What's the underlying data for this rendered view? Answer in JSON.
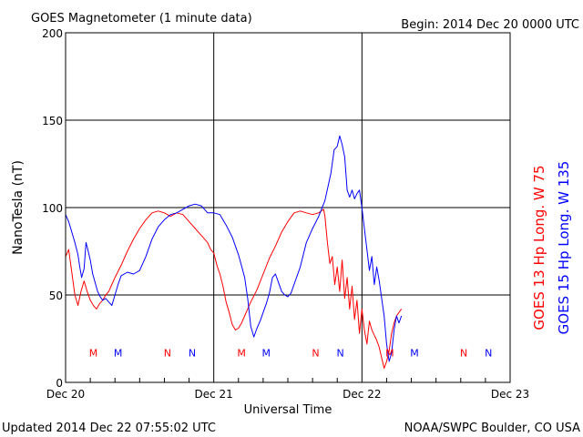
{
  "header": {
    "title": "GOES Magnetometer (1 minute data)",
    "begin": "Begin:  2014 Dec 20 0000 UTC"
  },
  "footer": {
    "updated": "Updated 2014 Dec 22 07:55:02 UTC",
    "credit": "NOAA/SWPC Boulder, CO USA"
  },
  "colors": {
    "goes13": "#ff0000",
    "goes15": "#0000ff",
    "grid": "#000000"
  },
  "chart_data": {
    "type": "line",
    "xlabel": "Universal Time",
    "ylabel": "NanoTesla (nT)",
    "x_unit": "hours since 2014 Dec 20 0000 UTC",
    "xlim": [
      0,
      72
    ],
    "ylim": [
      0,
      200
    ],
    "x_ticks": [
      {
        "x": 0,
        "label": "Dec 20"
      },
      {
        "x": 24,
        "label": "Dec 21"
      },
      {
        "x": 48,
        "label": "Dec 22"
      },
      {
        "x": 72,
        "label": "Dec 23"
      }
    ],
    "y_ticks": [
      0,
      50,
      100,
      150,
      200
    ],
    "grid": true,
    "legend": [
      {
        "name": "GOES 13 Hp  Long. W 75",
        "color": "#ff0000"
      },
      {
        "name": "GOES 15 Hp  Long. W 135",
        "color": "#0000ff"
      }
    ],
    "series": [
      {
        "name": "GOES 13 Hp",
        "color": "#ff0000",
        "points": [
          [
            0,
            72
          ],
          [
            0.5,
            76
          ],
          [
            1,
            63
          ],
          [
            1.5,
            50
          ],
          [
            2,
            44
          ],
          [
            2.5,
            52
          ],
          [
            3,
            58
          ],
          [
            3.5,
            52
          ],
          [
            4,
            47
          ],
          [
            4.5,
            44
          ],
          [
            5,
            42
          ],
          [
            5.5,
            45
          ],
          [
            6,
            47
          ],
          [
            6.5,
            50
          ],
          [
            7,
            52
          ],
          [
            7.5,
            56
          ],
          [
            8,
            60
          ],
          [
            9,
            67
          ],
          [
            10,
            75
          ],
          [
            11,
            82
          ],
          [
            12,
            88
          ],
          [
            13,
            93
          ],
          [
            14,
            97
          ],
          [
            15,
            98
          ],
          [
            16,
            97
          ],
          [
            17,
            95
          ],
          [
            18,
            97
          ],
          [
            19,
            96
          ],
          [
            20,
            92
          ],
          [
            21,
            88
          ],
          [
            22,
            84
          ],
          [
            23,
            80
          ],
          [
            23.5,
            76
          ],
          [
            24,
            74
          ],
          [
            24.5,
            67
          ],
          [
            25,
            62
          ],
          [
            25.5,
            55
          ],
          [
            26,
            46
          ],
          [
            26.5,
            40
          ],
          [
            27,
            33
          ],
          [
            27.5,
            30
          ],
          [
            28,
            31
          ],
          [
            28.5,
            34
          ],
          [
            29,
            38
          ],
          [
            29.5,
            42
          ],
          [
            30,
            46
          ],
          [
            31,
            53
          ],
          [
            32,
            62
          ],
          [
            33,
            71
          ],
          [
            34,
            78
          ],
          [
            35,
            86
          ],
          [
            36,
            92
          ],
          [
            37,
            97
          ],
          [
            38,
            98
          ],
          [
            39,
            97
          ],
          [
            40,
            96
          ],
          [
            41,
            97
          ],
          [
            41.8,
            99
          ],
          [
            42,
            95
          ],
          [
            42.4,
            80
          ],
          [
            42.8,
            68
          ],
          [
            43.2,
            72
          ],
          [
            43.6,
            56
          ],
          [
            44,
            66
          ],
          [
            44.4,
            52
          ],
          [
            44.8,
            70
          ],
          [
            45.2,
            48
          ],
          [
            45.6,
            60
          ],
          [
            46,
            42
          ],
          [
            46.4,
            55
          ],
          [
            46.8,
            36
          ],
          [
            47.2,
            47
          ],
          [
            47.6,
            28
          ],
          [
            48,
            42
          ],
          [
            48.4,
            30
          ],
          [
            48.8,
            22
          ],
          [
            49.2,
            35
          ],
          [
            49.6,
            30
          ],
          [
            50,
            27
          ],
          [
            50.4,
            24
          ],
          [
            50.8,
            20
          ],
          [
            51.2,
            14
          ],
          [
            51.6,
            8
          ],
          [
            52,
            12
          ],
          [
            52.4,
            18
          ],
          [
            52.8,
            28
          ],
          [
            53.2,
            34
          ],
          [
            53.6,
            38
          ],
          [
            54,
            40
          ],
          [
            54.4,
            42
          ]
        ]
      },
      {
        "name": "GOES 15 Hp",
        "color": "#0000ff",
        "points": [
          [
            0,
            96
          ],
          [
            0.5,
            92
          ],
          [
            1,
            86
          ],
          [
            1.5,
            80
          ],
          [
            2,
            73
          ],
          [
            2.3,
            66
          ],
          [
            2.6,
            60
          ],
          [
            3,
            65
          ],
          [
            3.3,
            80
          ],
          [
            3.6,
            76
          ],
          [
            4,
            70
          ],
          [
            4.4,
            62
          ],
          [
            4.8,
            57
          ],
          [
            5.2,
            52
          ],
          [
            5.6,
            49
          ],
          [
            6,
            47
          ],
          [
            6.5,
            48
          ],
          [
            7,
            46
          ],
          [
            7.5,
            44
          ],
          [
            8,
            50
          ],
          [
            8.5,
            56
          ],
          [
            9,
            61
          ],
          [
            10,
            63
          ],
          [
            11,
            62
          ],
          [
            12,
            64
          ],
          [
            13,
            72
          ],
          [
            14,
            82
          ],
          [
            15,
            89
          ],
          [
            16,
            93
          ],
          [
            17,
            96
          ],
          [
            18,
            97
          ],
          [
            19,
            99
          ],
          [
            20,
            101
          ],
          [
            21,
            102
          ],
          [
            22,
            101
          ],
          [
            23,
            97
          ],
          [
            24,
            97
          ],
          [
            25,
            96
          ],
          [
            26,
            90
          ],
          [
            27,
            83
          ],
          [
            28,
            73
          ],
          [
            29,
            60
          ],
          [
            29.5,
            48
          ],
          [
            30,
            32
          ],
          [
            30.5,
            26
          ],
          [
            31,
            31
          ],
          [
            31.5,
            35
          ],
          [
            32,
            40
          ],
          [
            32.5,
            45
          ],
          [
            33,
            51
          ],
          [
            33.5,
            60
          ],
          [
            34,
            62
          ],
          [
            34.5,
            57
          ],
          [
            35,
            52
          ],
          [
            35.5,
            50
          ],
          [
            36,
            49
          ],
          [
            36.5,
            51
          ],
          [
            37,
            56
          ],
          [
            38,
            66
          ],
          [
            39,
            80
          ],
          [
            40,
            88
          ],
          [
            41,
            95
          ],
          [
            42,
            104
          ],
          [
            43,
            120
          ],
          [
            43.5,
            133
          ],
          [
            44,
            135
          ],
          [
            44.4,
            141
          ],
          [
            44.8,
            136
          ],
          [
            45.2,
            129
          ],
          [
            45.6,
            110
          ],
          [
            46,
            106
          ],
          [
            46.4,
            110
          ],
          [
            46.8,
            105
          ],
          [
            47.2,
            108
          ],
          [
            47.6,
            110
          ],
          [
            48,
            100
          ],
          [
            48.4,
            88
          ],
          [
            48.8,
            76
          ],
          [
            49.2,
            64
          ],
          [
            49.6,
            72
          ],
          [
            50,
            56
          ],
          [
            50.4,
            66
          ],
          [
            50.8,
            58
          ],
          [
            51.2,
            48
          ],
          [
            51.6,
            38
          ],
          [
            52,
            22
          ],
          [
            52.4,
            12
          ],
          [
            52.8,
            17
          ],
          [
            53.2,
            30
          ],
          [
            53.6,
            38
          ],
          [
            54,
            34
          ],
          [
            54.4,
            38
          ]
        ]
      }
    ],
    "markers": [
      {
        "label": "M",
        "x": 4.5,
        "color": "#ff0000"
      },
      {
        "label": "M",
        "x": 8.5,
        "color": "#0000ff"
      },
      {
        "label": "N",
        "x": 16.5,
        "color": "#ff0000"
      },
      {
        "label": "N",
        "x": 20.5,
        "color": "#0000ff"
      },
      {
        "label": "M",
        "x": 28.5,
        "color": "#ff0000"
      },
      {
        "label": "M",
        "x": 32.5,
        "color": "#0000ff"
      },
      {
        "label": "N",
        "x": 40.5,
        "color": "#ff0000"
      },
      {
        "label": "N",
        "x": 44.5,
        "color": "#0000ff"
      },
      {
        "label": "M",
        "x": 52.5,
        "color": "#ff0000"
      },
      {
        "label": "M",
        "x": 56.5,
        "color": "#0000ff"
      },
      {
        "label": "N",
        "x": 64.5,
        "color": "#ff0000"
      },
      {
        "label": "N",
        "x": 68.5,
        "color": "#0000ff"
      }
    ],
    "marker_y": 17
  }
}
